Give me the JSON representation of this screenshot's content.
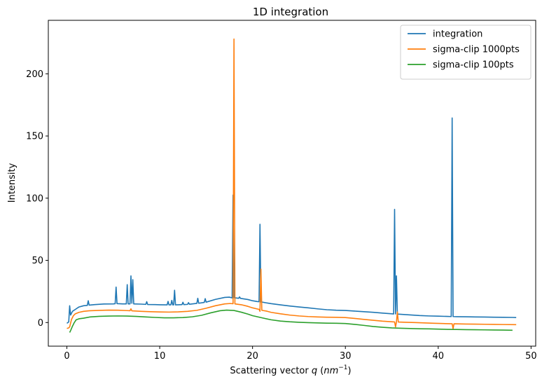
{
  "chart_data": {
    "type": "line",
    "title": "1D integration",
    "xlabel": "Scattering vector",
    "xlabel_var": "q",
    "xlabel_unit_open": "(",
    "xlabel_unit_base": "nm",
    "xlabel_unit_exp": "−1",
    "xlabel_unit_close": ")",
    "ylabel": "Intensity",
    "xlim": [
      -2.0,
      50.5
    ],
    "ylim": [
      -19.0,
      243.0
    ],
    "xticks": [
      0,
      10,
      20,
      30,
      40,
      50
    ],
    "yticks": [
      0,
      50,
      100,
      150,
      200
    ],
    "grid": false,
    "legend_position": "top-right",
    "series": [
      {
        "name": "integration",
        "color": "#1f77b4",
        "points": [
          [
            0.0,
            -0.6
          ],
          [
            0.2,
            0.5
          ],
          [
            0.3,
            13.5
          ],
          [
            0.4,
            6
          ],
          [
            0.6,
            9
          ],
          [
            0.9,
            10.5
          ],
          [
            1.3,
            12.5
          ],
          [
            1.8,
            13.5
          ],
          [
            2.2,
            13.8
          ],
          [
            2.3,
            17.5
          ],
          [
            2.4,
            14.0
          ],
          [
            3.0,
            14.4
          ],
          [
            4.0,
            14.9
          ],
          [
            5.0,
            15.0
          ],
          [
            5.2,
            15.1
          ],
          [
            5.3,
            28.5
          ],
          [
            5.4,
            15.2
          ],
          [
            6.0,
            15.0
          ],
          [
            6.4,
            15.0
          ],
          [
            6.5,
            30.5
          ],
          [
            6.6,
            15.0
          ],
          [
            6.8,
            15.0
          ],
          [
            6.9,
            37.5
          ],
          [
            7.0,
            15.5
          ],
          [
            7.1,
            34.5
          ],
          [
            7.2,
            15.0
          ],
          [
            8.0,
            14.8
          ],
          [
            8.5,
            14.6
          ],
          [
            8.6,
            16.8
          ],
          [
            8.7,
            14.5
          ],
          [
            9.5,
            14.4
          ],
          [
            10.0,
            14.3
          ],
          [
            10.8,
            14.2
          ],
          [
            10.9,
            17.0
          ],
          [
            11.0,
            14.2
          ],
          [
            11.2,
            14.2
          ],
          [
            11.3,
            17.8
          ],
          [
            11.4,
            14.2
          ],
          [
            11.5,
            14.2
          ],
          [
            11.6,
            26.0
          ],
          [
            11.7,
            14.2
          ],
          [
            12.0,
            14.3
          ],
          [
            12.4,
            14.4
          ],
          [
            12.5,
            16.3
          ],
          [
            12.6,
            14.4
          ],
          [
            13.0,
            14.6
          ],
          [
            13.1,
            16.0
          ],
          [
            13.2,
            14.7
          ],
          [
            14.0,
            15.4
          ],
          [
            14.1,
            19.5
          ],
          [
            14.2,
            15.5
          ],
          [
            14.8,
            16.2
          ],
          [
            14.9,
            19.2
          ],
          [
            15.0,
            16.4
          ],
          [
            16.0,
            18.6
          ],
          [
            17.0,
            20.2
          ],
          [
            17.5,
            20.4
          ],
          [
            17.8,
            19.8
          ],
          [
            17.9,
            102.5
          ],
          [
            18.0,
            20.0
          ],
          [
            18.5,
            19.5
          ],
          [
            18.6,
            20.6
          ],
          [
            18.7,
            19.4
          ],
          [
            19.5,
            18.5
          ],
          [
            20.0,
            17.5
          ],
          [
            20.5,
            16.9
          ],
          [
            20.7,
            16.7
          ],
          [
            20.8,
            79.0
          ],
          [
            20.9,
            16.6
          ],
          [
            21.5,
            15.8
          ],
          [
            22.0,
            15.2
          ],
          [
            23.0,
            14.2
          ],
          [
            24.0,
            13.3
          ],
          [
            25.0,
            12.5
          ],
          [
            26.0,
            11.8
          ],
          [
            27.0,
            11.0
          ],
          [
            28.0,
            10.3
          ],
          [
            29.0,
            9.9
          ],
          [
            30.0,
            9.7
          ],
          [
            31.0,
            9.2
          ],
          [
            32.0,
            8.7
          ],
          [
            33.0,
            8.2
          ],
          [
            34.0,
            7.6
          ],
          [
            35.0,
            7.0
          ],
          [
            35.2,
            6.9
          ],
          [
            35.3,
            91.0
          ],
          [
            35.4,
            6.9
          ],
          [
            35.5,
            37.5
          ],
          [
            35.6,
            6.8
          ],
          [
            36.0,
            6.6
          ],
          [
            37.0,
            6.1
          ],
          [
            38.0,
            5.6
          ],
          [
            39.0,
            5.3
          ],
          [
            40.0,
            5.1
          ],
          [
            41.0,
            4.9
          ],
          [
            41.4,
            4.8
          ],
          [
            41.5,
            164.5
          ],
          [
            41.6,
            4.8
          ],
          [
            42.0,
            4.7
          ],
          [
            43.0,
            4.6
          ],
          [
            44.0,
            4.5
          ],
          [
            45.0,
            4.4
          ],
          [
            46.0,
            4.3
          ],
          [
            47.0,
            4.2
          ],
          [
            48.0,
            4.1
          ],
          [
            48.4,
            4.0
          ]
        ]
      },
      {
        "name": "sigma-clip 1000pts",
        "color": "#ff7f0e",
        "points": [
          [
            0.0,
            -4.8
          ],
          [
            0.2,
            -4.3
          ],
          [
            0.3,
            -3.5
          ],
          [
            0.5,
            2.5
          ],
          [
            0.7,
            5.5
          ],
          [
            0.9,
            7.0
          ],
          [
            1.3,
            8.2
          ],
          [
            1.8,
            9.0
          ],
          [
            2.5,
            9.5
          ],
          [
            3.5,
            9.8
          ],
          [
            4.5,
            10.0
          ],
          [
            5.5,
            9.9
          ],
          [
            6.5,
            9.6
          ],
          [
            6.8,
            9.5
          ],
          [
            6.9,
            11.0
          ],
          [
            7.0,
            9.4
          ],
          [
            8.0,
            9.0
          ],
          [
            9.0,
            8.7
          ],
          [
            10.0,
            8.5
          ],
          [
            11.0,
            8.4
          ],
          [
            12.0,
            8.6
          ],
          [
            13.0,
            9.0
          ],
          [
            14.0,
            9.8
          ],
          [
            15.0,
            11.5
          ],
          [
            16.0,
            13.5
          ],
          [
            17.0,
            15.0
          ],
          [
            17.6,
            15.3
          ],
          [
            17.9,
            15.1
          ],
          [
            18.0,
            228.0
          ],
          [
            18.1,
            15.0
          ],
          [
            18.8,
            14.3
          ],
          [
            19.5,
            13.0
          ],
          [
            20.0,
            11.8
          ],
          [
            20.7,
            10.6
          ],
          [
            20.8,
            9.0
          ],
          [
            20.9,
            43.0
          ],
          [
            21.0,
            9.8
          ],
          [
            21.5,
            9.2
          ],
          [
            22.0,
            8.2
          ],
          [
            23.0,
            7.0
          ],
          [
            24.0,
            6.0
          ],
          [
            25.0,
            5.3
          ],
          [
            26.0,
            4.8
          ],
          [
            27.0,
            4.5
          ],
          [
            28.0,
            4.3
          ],
          [
            29.0,
            4.2
          ],
          [
            30.0,
            4.0
          ],
          [
            31.0,
            3.3
          ],
          [
            32.0,
            2.5
          ],
          [
            33.0,
            1.8
          ],
          [
            34.0,
            1.1
          ],
          [
            35.0,
            0.6
          ],
          [
            35.3,
            0.5
          ],
          [
            35.4,
            -3.5
          ],
          [
            35.5,
            0.4
          ],
          [
            35.6,
            8.5
          ],
          [
            35.7,
            0.4
          ],
          [
            36.5,
            0.2
          ],
          [
            37.5,
            0.0
          ],
          [
            38.5,
            -0.3
          ],
          [
            39.5,
            -0.6
          ],
          [
            40.5,
            -0.8
          ],
          [
            41.5,
            -1.0
          ],
          [
            41.6,
            -5.0
          ],
          [
            41.7,
            -1.0
          ],
          [
            43.0,
            -1.2
          ],
          [
            44.0,
            -1.3
          ],
          [
            45.0,
            -1.4
          ],
          [
            46.0,
            -1.5
          ],
          [
            47.0,
            -1.6
          ],
          [
            48.4,
            -1.7
          ]
        ]
      },
      {
        "name": "sigma-clip 100pts",
        "color": "#2ca02c",
        "points": [
          [
            0.3,
            -8.0
          ],
          [
            0.4,
            -6.5
          ],
          [
            0.6,
            -3.0
          ],
          [
            0.8,
            0.0
          ],
          [
            1.0,
            2.2
          ],
          [
            1.3,
            3.0
          ],
          [
            1.8,
            3.5
          ],
          [
            2.5,
            4.5
          ],
          [
            3.5,
            5.0
          ],
          [
            4.5,
            5.2
          ],
          [
            5.5,
            5.3
          ],
          [
            6.5,
            5.2
          ],
          [
            7.5,
            4.9
          ],
          [
            8.5,
            4.5
          ],
          [
            9.5,
            4.1
          ],
          [
            10.5,
            3.8
          ],
          [
            11.5,
            3.8
          ],
          [
            12.5,
            4.0
          ],
          [
            13.5,
            4.6
          ],
          [
            14.5,
            5.8
          ],
          [
            15.5,
            7.8
          ],
          [
            16.5,
            9.5
          ],
          [
            17.2,
            10.0
          ],
          [
            18.0,
            9.7
          ],
          [
            18.8,
            8.3
          ],
          [
            19.5,
            6.8
          ],
          [
            20.0,
            5.5
          ],
          [
            21.0,
            3.8
          ],
          [
            22.0,
            2.2
          ],
          [
            23.0,
            1.2
          ],
          [
            24.0,
            0.6
          ],
          [
            25.0,
            0.2
          ],
          [
            26.0,
            -0.1
          ],
          [
            27.0,
            -0.3
          ],
          [
            28.0,
            -0.5
          ],
          [
            29.0,
            -0.6
          ],
          [
            30.0,
            -0.8
          ],
          [
            31.0,
            -1.5
          ],
          [
            32.0,
            -2.3
          ],
          [
            33.0,
            -3.2
          ],
          [
            34.0,
            -3.8
          ],
          [
            35.0,
            -4.3
          ],
          [
            36.0,
            -4.6
          ],
          [
            37.0,
            -4.8
          ],
          [
            38.0,
            -5.0
          ],
          [
            39.0,
            -5.1
          ],
          [
            40.0,
            -5.3
          ],
          [
            41.0,
            -5.5
          ],
          [
            42.0,
            -5.6
          ],
          [
            43.0,
            -5.7
          ],
          [
            44.0,
            -5.8
          ],
          [
            45.0,
            -5.9
          ],
          [
            46.0,
            -6.0
          ],
          [
            47.0,
            -6.1
          ],
          [
            48.0,
            -6.2
          ]
        ]
      }
    ]
  }
}
